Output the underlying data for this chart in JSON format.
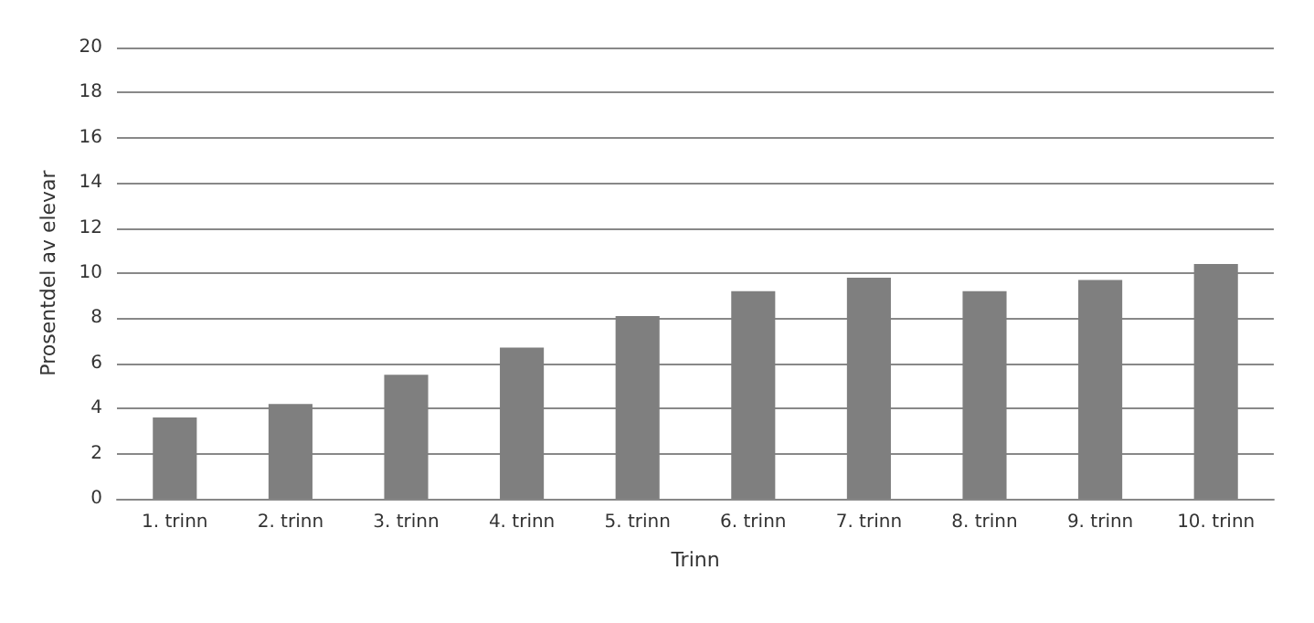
{
  "chart_data": {
    "type": "bar",
    "xlabel": "Trinn",
    "ylabel": "Prosentdel av elevar",
    "categories": [
      "1. trinn",
      "2. trinn",
      "3. trinn",
      "4. trinn",
      "5. trinn",
      "6. trinn",
      "7. trinn",
      "8. trinn",
      "9. trinn",
      "10. trinn"
    ],
    "values": [
      3.6,
      4.2,
      5.5,
      6.7,
      8.1,
      9.2,
      9.8,
      9.2,
      9.7,
      10.4
    ],
    "color": "#7f7f7f",
    "ylim": [
      0,
      20
    ],
    "yticks": [
      0,
      2,
      4,
      6,
      8,
      10,
      12,
      14,
      16,
      18,
      20
    ],
    "grid": "y"
  }
}
